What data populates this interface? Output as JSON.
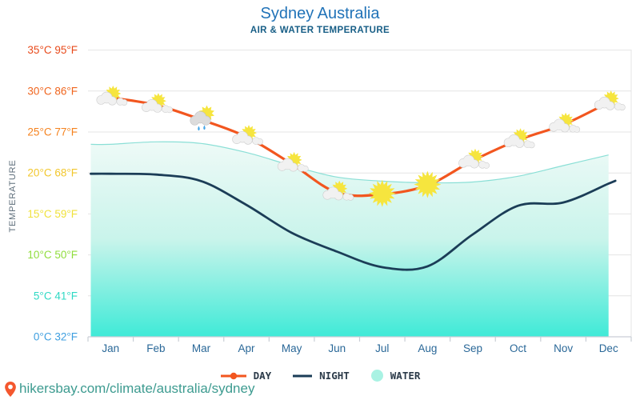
{
  "page": {
    "title": "Sydney Australia",
    "subtitle": "AIR & WATER TEMPERATURE",
    "footer_url": "hikersbay.com/climate/australia/sydney"
  },
  "colors": {
    "title": "#2173b8",
    "subtitle": "#175e86",
    "day_line": "#f2561f",
    "night_line": "#1b3d57",
    "water_fill_top": "#eefaf7",
    "water_fill_mid": "#c9f4eb",
    "water_fill_bottom": "#3fead7",
    "water_edge": "#8adfd6",
    "water_legend_swatch": "#a9f2e3",
    "month_label": "#2a6898",
    "grid": "#e4e4e4",
    "axis": "#c9ced6",
    "temperature_label": "#5d6d7a",
    "legend_text": "#2b3a49",
    "url_text": "#3d9b90",
    "pin": "#f4572e",
    "sun": "#f6e53e",
    "cloud_light": "#f1f1f1",
    "cloud_edge": "#cfcfcf",
    "cloud_gray": "#dcdcdc",
    "cloud_gray_edge": "#c0c0c0",
    "raindrop": "#45a6e8"
  },
  "y_axis": {
    "title": "TEMPERATURE",
    "ticks": [
      {
        "label": "35°C 95°F",
        "c": 35,
        "color": "#e84b1c"
      },
      {
        "label": "30°C 86°F",
        "c": 30,
        "color": "#f0661f"
      },
      {
        "label": "25°C 77°F",
        "c": 25,
        "color": "#f5831f"
      },
      {
        "label": "20°C 68°F",
        "c": 20,
        "color": "#f2c72e"
      },
      {
        "label": "15°C 59°F",
        "c": 15,
        "color": "#f0e23c"
      },
      {
        "label": "10°C 50°F",
        "c": 10,
        "color": "#90dd3c"
      },
      {
        "label": "5°C 41°F",
        "c": 5,
        "color": "#2fd9c4"
      },
      {
        "label": "0°C 32°F",
        "c": 0,
        "color": "#3f9fe0"
      }
    ]
  },
  "chart_data": {
    "type": "line",
    "title": "Sydney Australia",
    "subtitle": "AIR & WATER TEMPERATURE",
    "categories": [
      "Jan",
      "Feb",
      "Mar",
      "Apr",
      "May",
      "Jun",
      "Jul",
      "Aug",
      "Sep",
      "Oct",
      "Nov",
      "Dec"
    ],
    "ylabel": "TEMPERATURE",
    "unit": "°C",
    "ylim": [
      0,
      37.5
    ],
    "grid": true,
    "legend_position": "bottom",
    "series": [
      {
        "name": "DAY",
        "type": "line",
        "values": [
          29.2,
          28.3,
          26.5,
          24.4,
          21.1,
          17.6,
          17.4,
          18.5,
          21.5,
          24.0,
          25.9,
          28.6
        ]
      },
      {
        "name": "NIGHT",
        "type": "line",
        "values": [
          19.9,
          19.8,
          19.0,
          16.1,
          12.7,
          10.4,
          8.5,
          8.6,
          12.5,
          16.0,
          16.4,
          18.7
        ]
      },
      {
        "name": "WATER",
        "type": "area",
        "values": [
          23.5,
          23.8,
          23.6,
          22.5,
          20.9,
          19.5,
          19.0,
          18.8,
          18.9,
          19.6,
          20.9,
          22.2
        ]
      }
    ],
    "weather_icons": [
      "sun-cloud",
      "sun-cloud",
      "sun-rain-cloud",
      "sun-cloud",
      "sun-cloud",
      "sun-cloud",
      "sun",
      "sun",
      "sun-cloud",
      "sun-cloud",
      "sun-cloud",
      "sun-cloud"
    ]
  },
  "legend": {
    "items": [
      {
        "label": "DAY",
        "marker": "line-dot"
      },
      {
        "label": "NIGHT",
        "marker": "line"
      },
      {
        "label": "WATER",
        "marker": "circle"
      }
    ]
  }
}
